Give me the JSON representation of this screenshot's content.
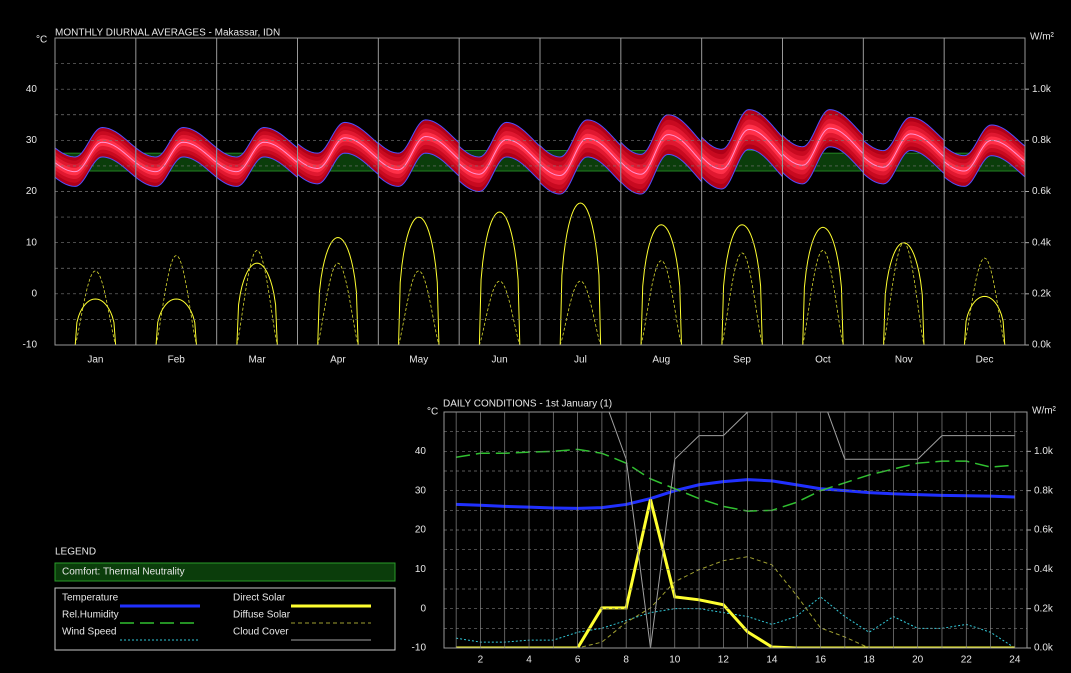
{
  "chart_data": [
    {
      "type": "band",
      "title": "MONTHLY DIURNAL AVERAGES - Makassar, IDN",
      "y_label": "°C",
      "y2_label": "W/m²",
      "categories": [
        "Jan",
        "Feb",
        "Mar",
        "Apr",
        "May",
        "Jun",
        "Jul",
        "Aug",
        "Sep",
        "Oct",
        "Nov",
        "Dec"
      ],
      "ylim": [
        -10,
        50
      ],
      "yticks": [
        -10,
        0,
        10,
        20,
        30,
        40
      ],
      "minor_yticks": [
        -5,
        5,
        15,
        25,
        35,
        45
      ],
      "y2lim": [
        0,
        1200
      ],
      "y2ticks": [
        {
          "value": 0,
          "label": "0.0k"
        },
        {
          "value": 200,
          "label": "0.2k"
        },
        {
          "value": 400,
          "label": "0.4k"
        },
        {
          "value": 600,
          "label": "0.6k"
        },
        {
          "value": 800,
          "label": "0.8k"
        },
        {
          "value": 1000,
          "label": "1.0k"
        }
      ],
      "comfort": {
        "name": "Comfort: Thermal Neutrality",
        "color": "#0b3d0b",
        "lower": [
          24,
          24,
          24,
          24,
          24,
          24,
          24,
          24,
          24,
          24,
          24,
          24
        ],
        "upper": [
          27.5,
          27.5,
          27.5,
          27.5,
          27.5,
          28,
          28,
          28,
          28,
          27.5,
          27.5,
          27.5
        ]
      },
      "temperature": {
        "color": "#b00018",
        "min": [
          21,
          21,
          21,
          21.5,
          21,
          20,
          19.5,
          19.5,
          20.5,
          21.5,
          21.5,
          21
        ],
        "max": [
          32.5,
          32.5,
          32.5,
          33.5,
          34,
          33.5,
          34,
          35,
          36,
          36,
          34.5,
          33
        ]
      },
      "direct_solar": {
        "color": "#ffff30",
        "axis": "y2",
        "values": [
          180,
          180,
          320,
          420,
          500,
          520,
          555,
          470,
          470,
          460,
          400,
          190
        ]
      },
      "diffuse_solar": {
        "color": "#d8d830",
        "axis": "y2",
        "values": [
          290,
          350,
          370,
          320,
          290,
          250,
          250,
          330,
          360,
          370,
          400,
          340
        ]
      }
    },
    {
      "type": "line",
      "title": "DAILY CONDITIONS - 1st January (1)",
      "y_label": "°C",
      "y2_label": "W/m²",
      "legend_title": "LEGEND",
      "x": [
        1,
        2,
        3,
        4,
        5,
        6,
        7,
        8,
        9,
        10,
        11,
        12,
        13,
        14,
        15,
        16,
        17,
        18,
        19,
        20,
        21,
        22,
        23,
        24
      ],
      "xlim": [
        0.5,
        24.5
      ],
      "xticks": [
        2,
        4,
        6,
        8,
        10,
        12,
        14,
        16,
        18,
        20,
        22,
        24
      ],
      "ylim": [
        -10,
        50
      ],
      "yticks": [
        -10,
        0,
        10,
        20,
        30,
        40
      ],
      "minor_yticks": [
        -5,
        5,
        15,
        25,
        35,
        45
      ],
      "y2lim": [
        0,
        1200
      ],
      "y2ticks": [
        {
          "value": 0,
          "label": "0.0k"
        },
        {
          "value": 200,
          "label": "0.2k"
        },
        {
          "value": 400,
          "label": "0.4k"
        },
        {
          "value": 600,
          "label": "0.6k"
        },
        {
          "value": 800,
          "label": "0.8k"
        },
        {
          "value": 1000,
          "label": "1.0k"
        }
      ],
      "series": [
        {
          "name": "Temperature",
          "color": "#2030ff",
          "dash": "solid",
          "width": 3,
          "values": [
            26.5,
            26.3,
            26,
            25.8,
            25.6,
            25.5,
            25.7,
            26.5,
            28,
            30,
            31.5,
            32.3,
            32.8,
            32.5,
            31.5,
            30.5,
            30,
            29.5,
            29.2,
            29,
            28.8,
            28.7,
            28.6,
            28.4
          ]
        },
        {
          "name": "Rel.Humidity",
          "color": "#30c030",
          "dash": "long-dash",
          "width": 1.5,
          "values": [
            38.5,
            39.5,
            39.5,
            39.8,
            40,
            40.5,
            39.5,
            37,
            33,
            30.5,
            28,
            26,
            24.8,
            25,
            27,
            30,
            32,
            34,
            35.5,
            37,
            37.5,
            37.5,
            36,
            36.5
          ]
        },
        {
          "name": "Wind Speed",
          "color": "#30c8d8",
          "dash": "dotted",
          "width": 1,
          "values": [
            -7.5,
            -8.5,
            -8.5,
            -8,
            -8,
            -6,
            -5,
            -3,
            -1,
            0,
            0,
            -1,
            -2,
            -4,
            -2,
            3,
            -2,
            -6,
            -2,
            -5,
            -5,
            -4,
            -6,
            -10
          ]
        },
        {
          "name": "Direct Solar",
          "color": "#ffff30",
          "dash": "solid",
          "width": 3,
          "axis": "y2",
          "values": [
            0,
            0,
            0,
            0,
            0,
            0,
            204,
            204,
            755,
            260,
            245,
            220,
            82,
            5,
            0,
            0,
            0,
            0,
            0,
            0,
            0,
            0,
            0,
            0
          ]
        },
        {
          "name": "Diffuse Solar",
          "color": "#a0a030",
          "dash": "dashed",
          "width": 1,
          "axis": "y2",
          "values": [
            0,
            0,
            0,
            0,
            0,
            0,
            30,
            130,
            204,
            337,
            398,
            444,
            464,
            423,
            270,
            102,
            56,
            0,
            0,
            0,
            0,
            0,
            0,
            0
          ]
        },
        {
          "name": "Cloud Cover",
          "color": "#a0a0a0",
          "dash": "solid",
          "width": 1,
          "values": [
            55,
            55,
            55,
            55,
            55,
            55,
            55,
            38,
            -10,
            38,
            44,
            44,
            50,
            55,
            55,
            55,
            38,
            38,
            38,
            38,
            44,
            44,
            44,
            44
          ]
        }
      ]
    }
  ]
}
